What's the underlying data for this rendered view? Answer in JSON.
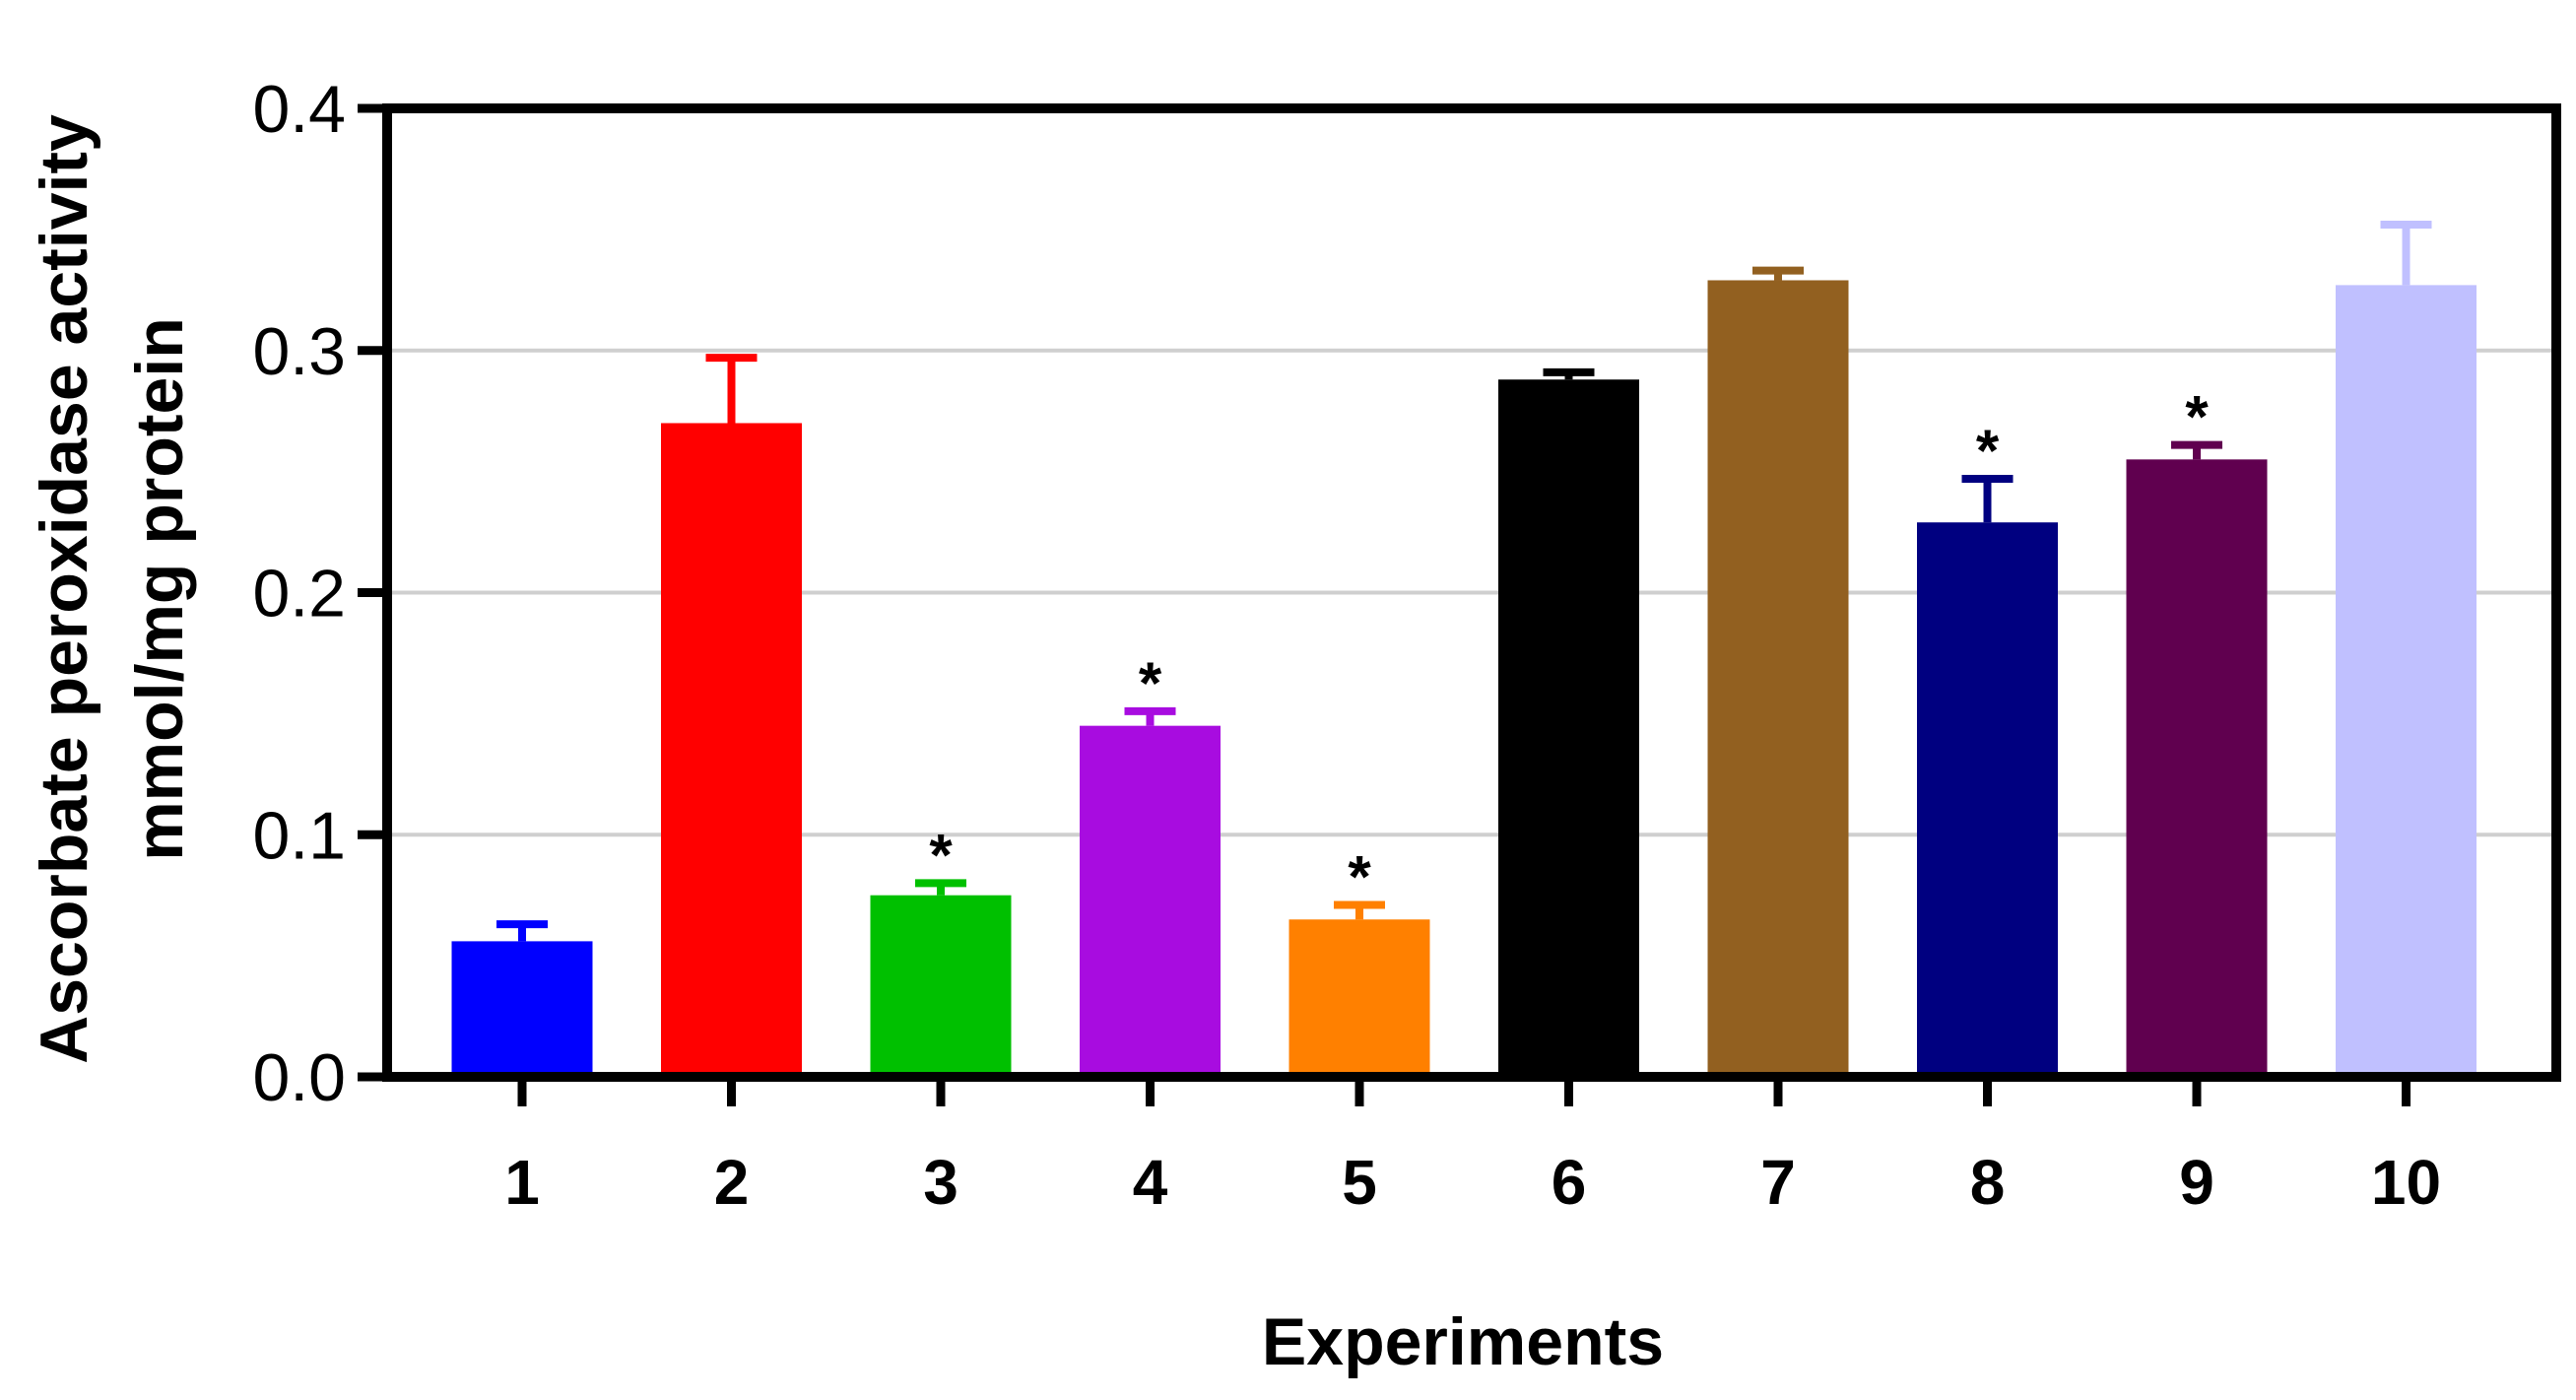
{
  "chart_data": {
    "type": "bar",
    "title": "",
    "xlabel": "Experiments",
    "ylabel_line1": "Ascorbate peroxidase activity",
    "ylabel_line2": "mmol/mg protein",
    "ylim": [
      0,
      0.4
    ],
    "yticks": [
      0.0,
      0.1,
      0.2,
      0.3,
      0.4
    ],
    "ytick_labels": [
      "0.0",
      "0.1",
      "0.2",
      "0.3",
      "0.4"
    ],
    "grid": true,
    "categories": [
      "1",
      "2",
      "3",
      "4",
      "5",
      "6",
      "7",
      "8",
      "9",
      "10"
    ],
    "values": [
      0.056,
      0.27,
      0.075,
      0.145,
      0.065,
      0.288,
      0.329,
      0.229,
      0.255,
      0.327
    ],
    "errors": [
      0.007,
      0.027,
      0.005,
      0.006,
      0.006,
      0.003,
      0.004,
      0.018,
      0.006,
      0.025
    ],
    "significance": [
      "",
      "",
      "*",
      "*",
      "*",
      "",
      "",
      "*",
      "*",
      ""
    ],
    "colors": [
      "#0000FF",
      "#FF0000",
      "#00C000",
      "#A80CE0",
      "#FF8000",
      "#000000",
      "#926020",
      "#000080",
      "#60004F",
      "#C0C0FF"
    ]
  }
}
